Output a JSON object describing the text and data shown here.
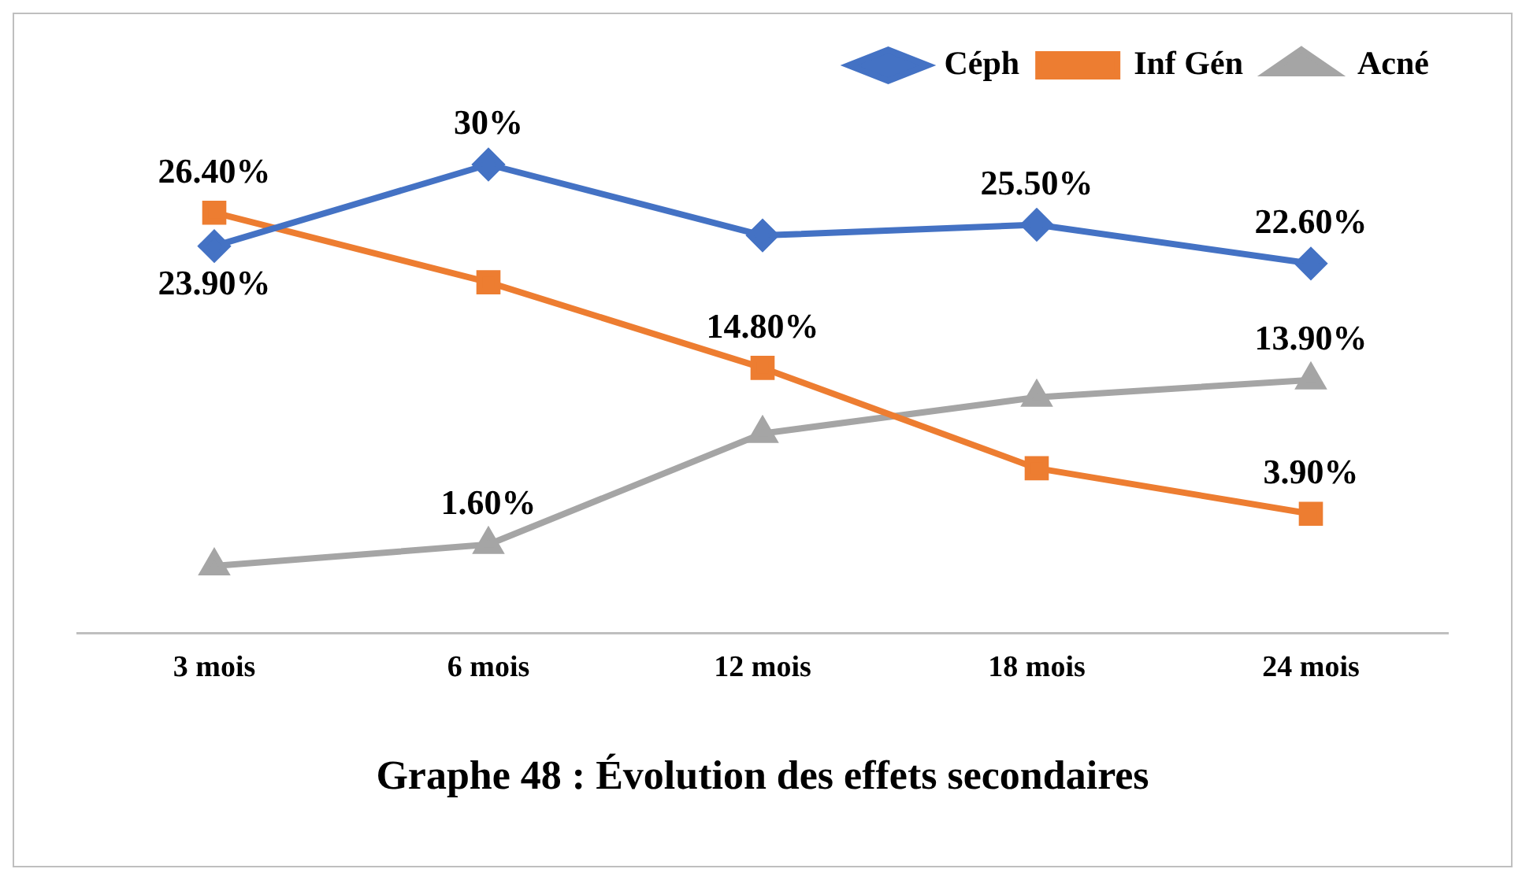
{
  "chart_data": {
    "type": "line",
    "title": "Graphe 48 : Évolution des effets secondaires",
    "categories": [
      "3 mois",
      "6 mois",
      "12 mois",
      "18 mois",
      "24 mois"
    ],
    "series": [
      {
        "name": "Céph",
        "color": "#4472c4",
        "marker": "diamond",
        "values": [
          23.9,
          30,
          24.7,
          25.5,
          22.6
        ],
        "value_labels": [
          "23.90%",
          "30%",
          null,
          "25.50%",
          "22.60%"
        ]
      },
      {
        "name": "Inf Gén",
        "color": "#ed7d31",
        "marker": "square",
        "values": [
          26.4,
          21.2,
          14.8,
          7.3,
          3.9
        ],
        "value_labels": [
          "26.40%",
          null,
          "14.80%",
          null,
          "3.90%"
        ]
      },
      {
        "name": "Acné",
        "color": "#a5a5a5",
        "marker": "triangle",
        "values": [
          0,
          1.6,
          9.9,
          12.6,
          13.9
        ],
        "value_labels": [
          null,
          "1.60%",
          null,
          null,
          "13.90%"
        ]
      }
    ],
    "legend": "top right",
    "grid": false,
    "tick_labels": "x"
  }
}
